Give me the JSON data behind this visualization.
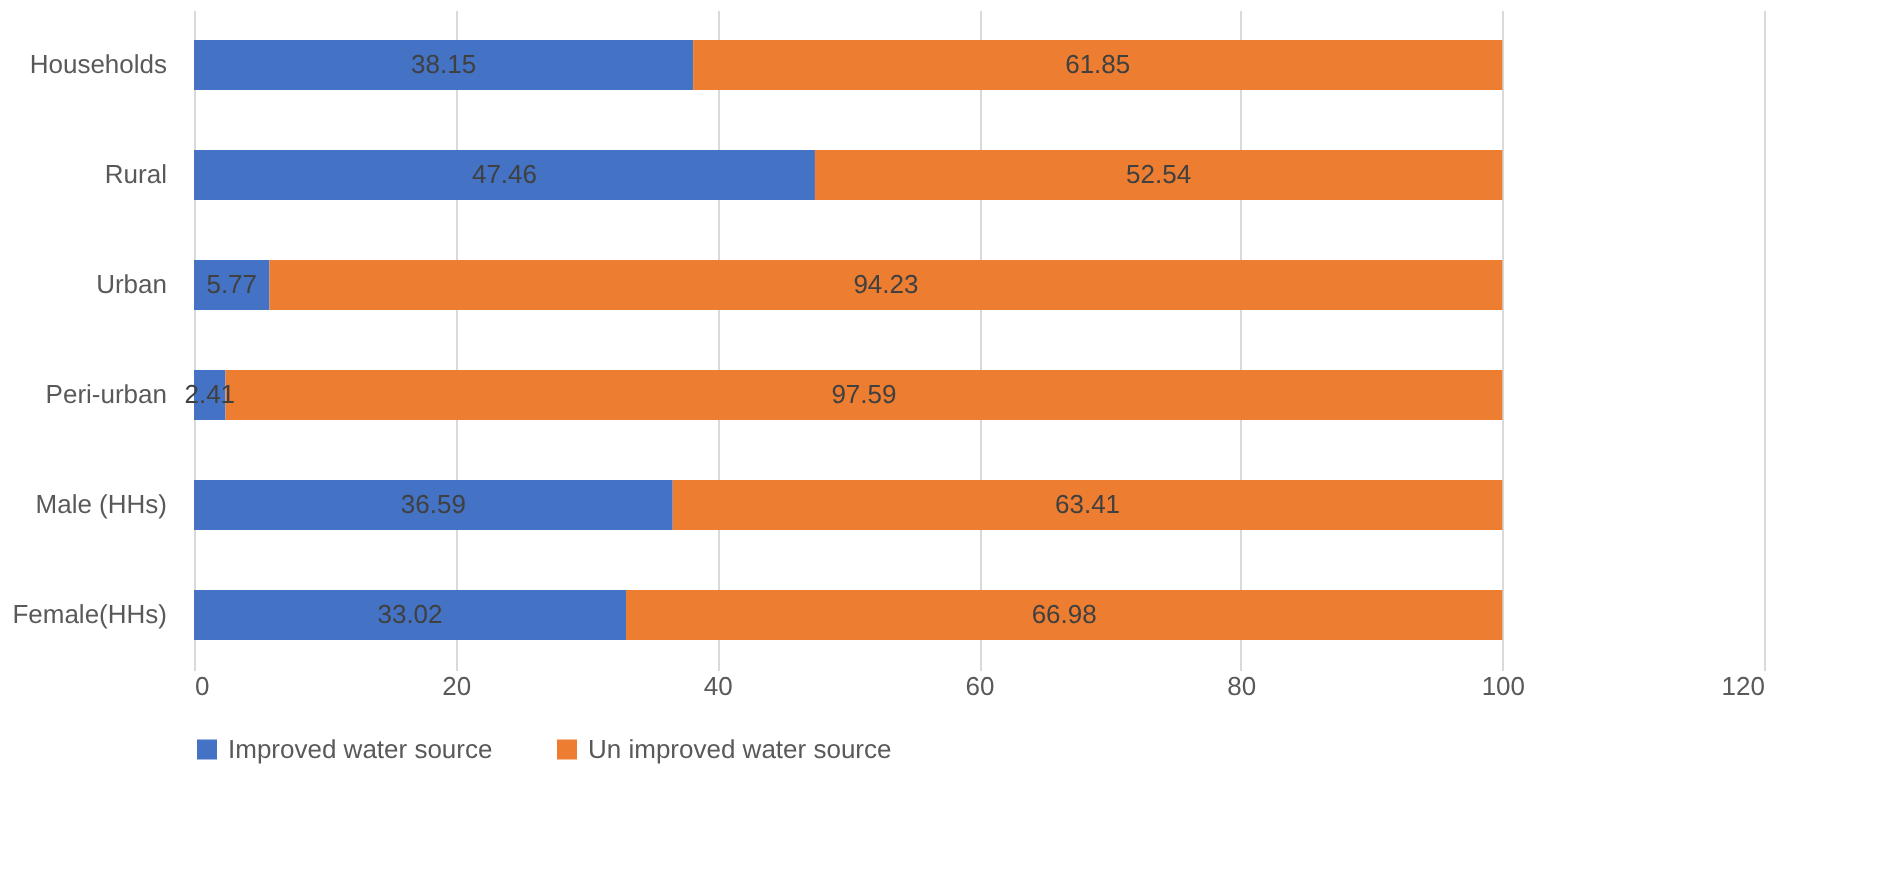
{
  "chart_data": {
    "type": "bar",
    "orientation": "horizontal",
    "stacked": true,
    "categories": [
      "Households",
      "Rural",
      "Urban",
      "Peri-urban",
      "Male (HHs)",
      "Female(HHs)"
    ],
    "series": [
      {
        "name": "Improved water source",
        "color": "#4472c4",
        "values": [
          38.15,
          47.46,
          5.77,
          2.41,
          36.59,
          33.02
        ]
      },
      {
        "name": "Un improved water source",
        "color": "#ed7d31",
        "values": [
          61.85,
          52.54,
          94.23,
          97.59,
          63.41,
          66.98
        ]
      }
    ],
    "xlim": [
      0,
      120
    ],
    "xticks": [
      0,
      20,
      40,
      60,
      80,
      100,
      120
    ],
    "grid": "x",
    "legend": "bottom",
    "data_labels": true
  }
}
